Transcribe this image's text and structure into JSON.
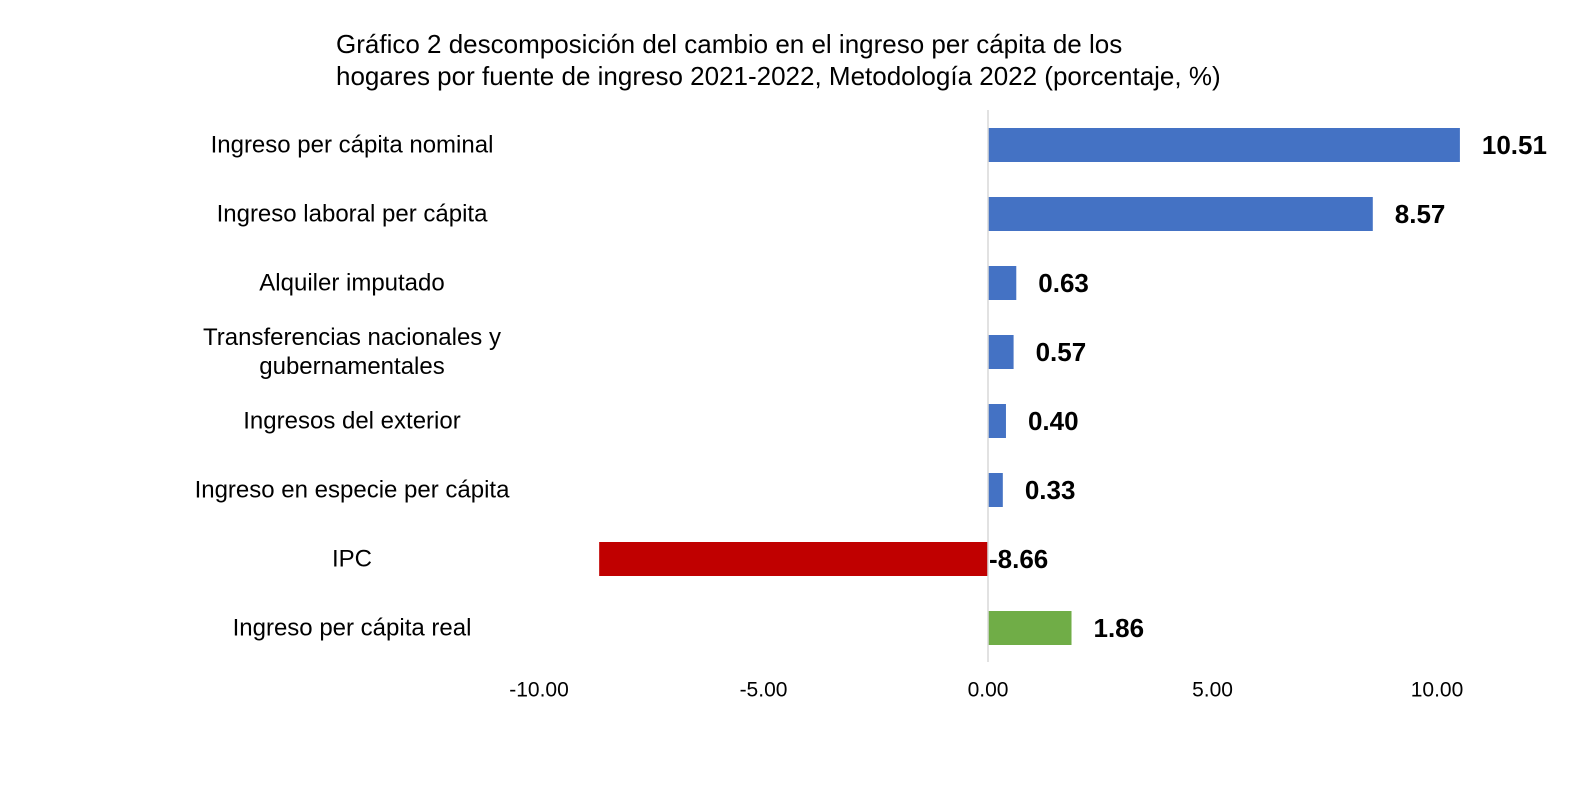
{
  "chart_data": {
    "type": "bar",
    "orientation": "horizontal",
    "title_lines": [
      "Gráfico 2 descomposición del cambio en el ingreso per cápita de los",
      "hogares por fuente de ingreso 2021-2022, Metodología 2022 (porcentaje, %)"
    ],
    "categories": [
      [
        "Ingreso per cápita nominal"
      ],
      [
        "Ingreso laboral per cápita"
      ],
      [
        "Alquiler imputado"
      ],
      [
        "Transferencias nacionales y",
        "gubernamentales"
      ],
      [
        "Ingresos del exterior"
      ],
      [
        "Ingreso en especie per cápita"
      ],
      [
        "IPC"
      ],
      [
        "Ingreso per cápita real"
      ]
    ],
    "values": [
      10.51,
      8.57,
      0.63,
      0.57,
      0.4,
      0.33,
      -8.66,
      1.86
    ],
    "value_labels": [
      "10.51",
      "8.57",
      "0.63",
      "0.57",
      "0.40",
      "0.33",
      "-8.66",
      "1.86"
    ],
    "bar_colors": [
      "#4472c4",
      "#4472c4",
      "#4472c4",
      "#4472c4",
      "#4472c4",
      "#4472c4",
      "#c00000",
      "#70ad47"
    ],
    "xlim": [
      -10,
      10
    ],
    "xticks": [
      -10,
      -5,
      0,
      5,
      10
    ],
    "xtick_labels": [
      "-10.00",
      "-5.00",
      "0.00",
      "5.00",
      "10.00"
    ],
    "zero_line_color": "#d9d9d9",
    "legend": "none",
    "grid": false
  }
}
